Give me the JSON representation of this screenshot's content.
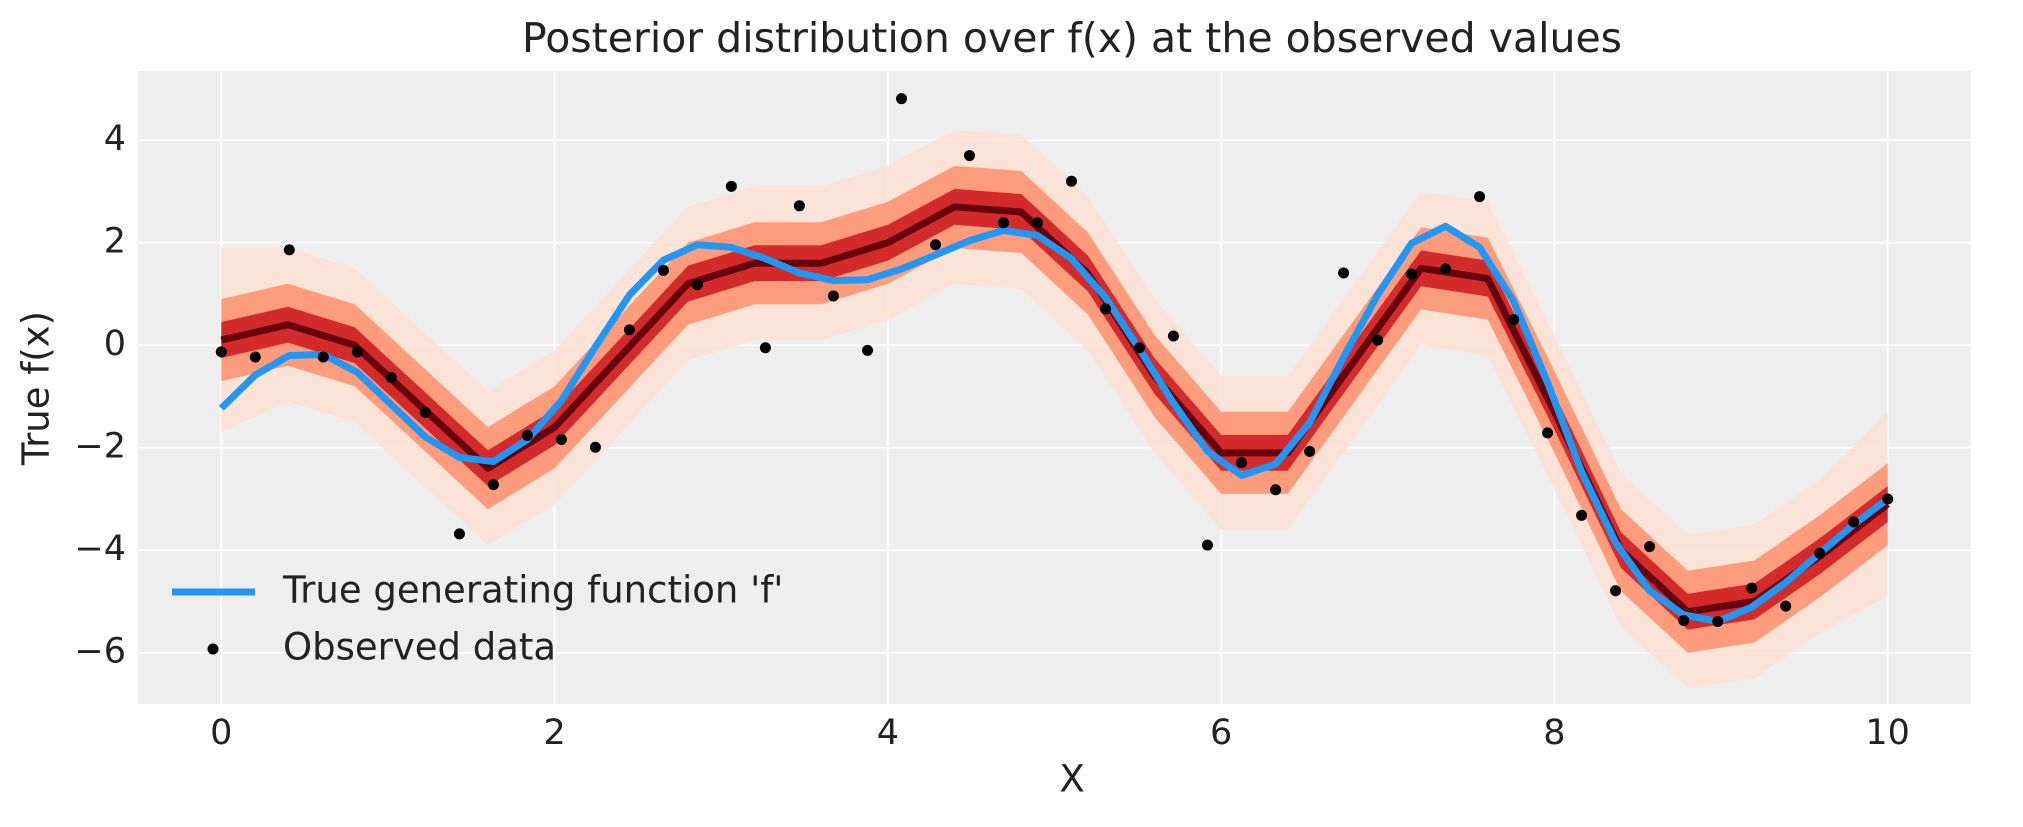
{
  "chart_data": {
    "type": "line",
    "title": "Posterior distribution over f(x) at the observed values",
    "xlabel": "X",
    "ylabel": "True f(x)",
    "xlim": [
      -0.5,
      10.5
    ],
    "ylim": [
      -7,
      5.35
    ],
    "xticks": [
      0,
      2,
      4,
      6,
      8,
      10
    ],
    "yticks": [
      {
        "value": -6,
        "label": "−6"
      },
      {
        "value": -4,
        "label": "−4"
      },
      {
        "value": -2,
        "label": "−2"
      },
      0,
      2,
      4
    ],
    "grid": true,
    "legend": "lower left",
    "x": [
      0,
      0.204,
      0.408,
      0.612,
      0.816,
      1.02,
      1.224,
      1.429,
      1.633,
      1.837,
      2.041,
      2.245,
      2.449,
      2.653,
      2.857,
      3.061,
      3.265,
      3.469,
      3.673,
      3.878,
      4.082,
      4.286,
      4.49,
      4.694,
      4.898,
      5.102,
      5.306,
      5.51,
      5.714,
      5.918,
      6.122,
      6.327,
      6.531,
      6.735,
      6.939,
      7.143,
      7.347,
      7.551,
      7.755,
      7.959,
      8.163,
      8.367,
      8.571,
      8.776,
      8.98,
      9.184,
      9.388,
      9.592,
      9.796,
      10
    ],
    "posterior": {
      "x": [
        0,
        0.4,
        0.8,
        1.2,
        1.6,
        2.0,
        2.4,
        2.8,
        3.2,
        3.6,
        4.0,
        4.4,
        4.8,
        5.2,
        5.6,
        6.0,
        6.4,
        6.8,
        7.2,
        7.6,
        8.0,
        8.4,
        8.8,
        9.2,
        9.6,
        10
      ],
      "median_color": "#67000d",
      "median": [
        0.1,
        0.4,
        0.0,
        -1.2,
        -2.4,
        -1.6,
        -0.2,
        1.2,
        1.6,
        1.6,
        2.0,
        2.7,
        2.6,
        1.4,
        -0.6,
        -2.1,
        -2.1,
        -0.3,
        1.5,
        1.3,
        -1.3,
        -4.0,
        -5.2,
        -5.0,
        -4.1,
        -3.1
      ],
      "bands": [
        {
          "color": "#fde0d2",
          "lower": [
            -1.7,
            -1.1,
            -1.5,
            -2.7,
            -3.9,
            -3.1,
            -1.7,
            -0.3,
            0.1,
            0.1,
            0.5,
            1.2,
            1.1,
            -0.1,
            -2.1,
            -3.6,
            -3.6,
            -1.8,
            0.0,
            -0.2,
            -2.8,
            -5.5,
            -6.7,
            -6.5,
            -5.6,
            -4.9
          ],
          "upper": [
            1.9,
            1.9,
            1.5,
            0.3,
            -0.9,
            -0.1,
            1.3,
            2.7,
            3.1,
            3.1,
            3.5,
            4.2,
            4.1,
            2.9,
            0.9,
            -0.6,
            -0.6,
            1.2,
            3.0,
            2.8,
            0.2,
            -2.5,
            -3.7,
            -3.5,
            -2.6,
            -1.3
          ]
        },
        {
          "color": "#fb8f6c",
          "lower": [
            -0.7,
            -0.4,
            -0.8,
            -2.0,
            -3.2,
            -2.4,
            -1.0,
            0.4,
            0.8,
            0.8,
            1.2,
            1.9,
            1.8,
            0.6,
            -1.4,
            -2.9,
            -2.9,
            -1.1,
            0.7,
            0.5,
            -2.1,
            -4.8,
            -6.0,
            -5.8,
            -4.9,
            -3.9
          ],
          "upper": [
            0.9,
            1.2,
            0.8,
            -0.4,
            -1.6,
            -0.8,
            0.6,
            2.0,
            2.4,
            2.4,
            2.8,
            3.5,
            3.4,
            2.2,
            0.2,
            -1.3,
            -1.3,
            0.5,
            2.3,
            2.1,
            -0.5,
            -3.2,
            -4.4,
            -4.2,
            -3.3,
            -2.3
          ]
        },
        {
          "color": "#cb181d",
          "lower": [
            -0.25,
            0.05,
            -0.35,
            -1.55,
            -2.75,
            -1.95,
            -0.55,
            0.85,
            1.25,
            1.25,
            1.65,
            2.35,
            2.25,
            1.05,
            -0.95,
            -2.45,
            -2.45,
            -0.65,
            1.15,
            0.95,
            -1.65,
            -4.35,
            -5.55,
            -5.35,
            -4.45,
            -3.45
          ],
          "upper": [
            0.45,
            0.75,
            0.35,
            -0.85,
            -2.05,
            -1.25,
            0.15,
            1.55,
            1.95,
            1.95,
            2.35,
            3.05,
            2.95,
            1.75,
            -0.25,
            -1.75,
            -1.75,
            0.05,
            1.85,
            1.65,
            -0.95,
            -3.65,
            -4.85,
            -4.65,
            -3.75,
            -2.75
          ]
        }
      ]
    },
    "series": [
      {
        "name": "True generating function 'f'",
        "type": "line",
        "color": "#2196f3",
        "values": [
          -1.23,
          -0.58,
          -0.2,
          -0.18,
          -0.53,
          -1.16,
          -1.79,
          -2.19,
          -2.27,
          -1.84,
          -1.08,
          -0.03,
          0.98,
          1.66,
          1.96,
          1.91,
          1.69,
          1.41,
          1.26,
          1.28,
          1.49,
          1.76,
          2.04,
          2.24,
          2.14,
          1.69,
          0.93,
          -0.08,
          -1.13,
          -2.07,
          -2.54,
          -2.32,
          -1.51,
          -0.23,
          0.98,
          1.99,
          2.32,
          1.91,
          0.86,
          -0.73,
          -2.47,
          -3.85,
          -4.79,
          -5.26,
          -5.39,
          -5.11,
          -4.63,
          -4.06,
          -3.5,
          -3.0
        ]
      },
      {
        "name": "Observed data",
        "type": "scatter",
        "color": "#000000",
        "values": [
          -0.13,
          -0.23,
          1.86,
          -0.23,
          -0.13,
          -0.63,
          -1.31,
          -3.68,
          -2.72,
          -1.76,
          -1.84,
          -1.99,
          0.3,
          1.46,
          1.18,
          3.1,
          -0.05,
          2.72,
          0.96,
          -0.1,
          4.81,
          1.96,
          3.7,
          2.39,
          2.39,
          3.2,
          0.71,
          -0.05,
          0.18,
          -3.9,
          -2.29,
          -2.82,
          -2.07,
          1.41,
          0.1,
          1.39,
          1.49,
          2.9,
          0.5,
          -1.71,
          -3.32,
          -4.79,
          -3.93,
          -5.37,
          -5.39,
          -4.74,
          -5.09,
          -4.06,
          -3.45,
          -3.0
        ]
      }
    ]
  }
}
